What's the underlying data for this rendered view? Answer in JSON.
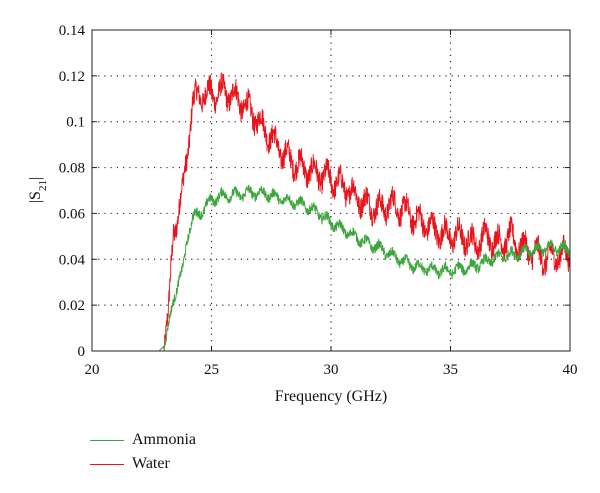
{
  "chart_data": {
    "type": "line",
    "xlabel": "Frequency (GHz)",
    "ylabel_base": "|S",
    "ylabel_sub": "21",
    "ylabel_end": "|",
    "xlim": [
      20,
      40
    ],
    "ylim": [
      0,
      0.14
    ],
    "x_ticks": [
      20,
      25,
      30,
      35,
      40
    ],
    "y_ticks": [
      0,
      0.02,
      0.04,
      0.06,
      0.08,
      0.1,
      0.12,
      0.14
    ],
    "x_tick_labels": [
      "20",
      "25",
      "30",
      "35",
      "40"
    ],
    "y_tick_labels": [
      "0",
      "0.02",
      "0.04",
      "0.06",
      "0.08",
      "0.1",
      "0.12",
      "0.14"
    ],
    "grid": "dotted",
    "legend_position": "below",
    "series": [
      {
        "name": "Water",
        "color": "#e8141c",
        "x": [
          20,
          22.8,
          23.0,
          23.2,
          23.4,
          23.6,
          23.8,
          24.0,
          24.2,
          24.5,
          25.0,
          25.5,
          26.0,
          26.5,
          27.0,
          27.5,
          28.0,
          28.5,
          29.0,
          29.5,
          30.0,
          30.5,
          31.0,
          31.5,
          32.0,
          32.5,
          33.0,
          33.5,
          34.0,
          34.5,
          35.0,
          35.5,
          36.0,
          36.5,
          37.0,
          37.5,
          38.0,
          38.5,
          39.0,
          39.5,
          40.0
        ],
        "values": [
          0,
          0,
          0.002,
          0.015,
          0.052,
          0.06,
          0.07,
          0.088,
          0.108,
          0.112,
          0.112,
          0.113,
          0.111,
          0.106,
          0.1,
          0.093,
          0.086,
          0.082,
          0.079,
          0.077,
          0.075,
          0.072,
          0.068,
          0.064,
          0.062,
          0.064,
          0.062,
          0.058,
          0.055,
          0.052,
          0.05,
          0.05,
          0.047,
          0.05,
          0.047,
          0.05,
          0.045,
          0.043,
          0.04,
          0.042,
          0.042
        ],
        "noise": 0.007
      },
      {
        "name": "Ammonia",
        "color": "#3da53d",
        "x": [
          20,
          22.8,
          23.0,
          23.2,
          23.4,
          23.6,
          23.8,
          24.0,
          24.2,
          24.5,
          25.0,
          25.5,
          26.0,
          26.5,
          27.0,
          27.5,
          28.0,
          28.5,
          29.0,
          29.5,
          30.0,
          30.5,
          31.0,
          31.5,
          32.0,
          32.5,
          33.0,
          33.5,
          34.0,
          34.5,
          35.0,
          35.5,
          36.0,
          36.5,
          37.0,
          37.5,
          38.0,
          38.5,
          39.0,
          39.5,
          40.0
        ],
        "values": [
          0,
          0,
          0.002,
          0.01,
          0.022,
          0.03,
          0.035,
          0.05,
          0.058,
          0.06,
          0.066,
          0.068,
          0.068,
          0.069,
          0.069,
          0.068,
          0.066,
          0.065,
          0.063,
          0.06,
          0.056,
          0.053,
          0.05,
          0.047,
          0.045,
          0.042,
          0.039,
          0.037,
          0.036,
          0.035,
          0.035,
          0.036,
          0.037,
          0.039,
          0.041,
          0.042,
          0.043,
          0.044,
          0.045,
          0.045,
          0.044
        ],
        "noise": 0.003
      }
    ]
  }
}
